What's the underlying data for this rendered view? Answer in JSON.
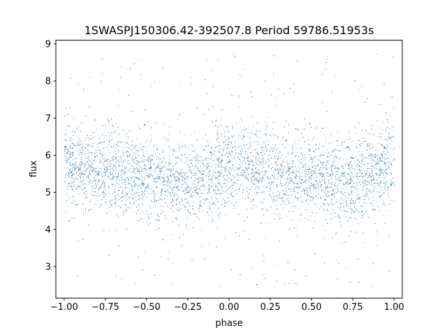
{
  "chart_data": {
    "type": "scatter",
    "title": "1SWASPJ150306.42-392507.8 Period 59786.51953s",
    "xlabel": "phase",
    "ylabel": "flux",
    "xlim": [
      -1.05,
      1.05
    ],
    "ylim": [
      2.15,
      9.1
    ],
    "x_ticks": [
      -1.0,
      -0.75,
      -0.5,
      -0.25,
      0.0,
      0.25,
      0.5,
      0.75,
      1.0
    ],
    "x_tick_labels": [
      "−1.00",
      "−0.75",
      "−0.50",
      "−0.25",
      "0.00",
      "0.25",
      "0.50",
      "0.75",
      "1.00"
    ],
    "y_ticks": [
      3,
      4,
      5,
      6,
      7,
      8,
      9
    ],
    "y_tick_labels": [
      "3",
      "4",
      "5",
      "6",
      "7",
      "8",
      "9"
    ],
    "grid": false,
    "legend": "none",
    "series_color": "#1f77b4",
    "point_cloud": {
      "x_range": [
        -1.0,
        1.0
      ],
      "y_range": [
        2.45,
        8.75
      ],
      "description_of_trend": [
        {
          "phase": -1.0,
          "flux_center": 5.75,
          "flux_spread": 0.55
        },
        {
          "phase": -0.75,
          "flux_center": 5.6,
          "flux_spread": 0.55
        },
        {
          "phase": -0.5,
          "flux_center": 5.4,
          "flux_spread": 0.55
        },
        {
          "phase": -0.25,
          "flux_center": 5.25,
          "flux_spread": 0.55
        },
        {
          "phase": 0.0,
          "flux_center": 5.75,
          "flux_spread": 0.55
        },
        {
          "phase": 0.25,
          "flux_center": 5.6,
          "flux_spread": 0.55
        },
        {
          "phase": 0.5,
          "flux_center": 5.4,
          "flux_spread": 0.55
        },
        {
          "phase": 0.75,
          "flux_center": 5.25,
          "flux_spread": 0.55
        },
        {
          "phase": 1.0,
          "flux_center": 5.75,
          "flux_spread": 0.55
        }
      ]
    }
  }
}
